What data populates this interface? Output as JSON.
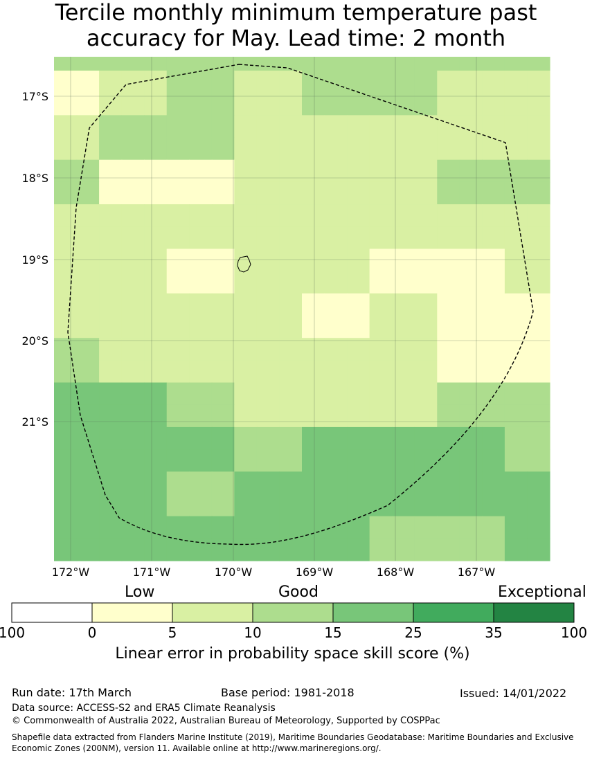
{
  "title": {
    "line1": "Tercile monthly minimum temperature past",
    "line2": "accuracy for May. Lead time: 2 month"
  },
  "map": {
    "lat_ticks": [
      "17°S",
      "18°S",
      "19°S",
      "20°S",
      "21°S"
    ],
    "lon_ticks": [
      "172°W",
      "171°W",
      "170°W",
      "169°W",
      "168°W",
      "167°W"
    ],
    "grid_colors": {
      "1": "#ffffcc",
      "2": "#d9f0a3",
      "3": "#addd8e",
      "4": "#78c679"
    },
    "grid": [
      [
        3,
        3,
        3,
        3,
        3,
        3,
        3,
        3,
        3,
        3,
        3,
        3,
        3,
        3,
        3,
        3,
        3,
        3,
        3,
        3,
        3,
        3
      ],
      [
        1,
        1,
        2,
        2,
        2,
        3,
        3,
        3,
        2,
        2,
        2,
        3,
        3,
        3,
        3,
        3,
        3,
        2,
        2,
        2,
        2,
        2
      ],
      [
        1,
        1,
        2,
        2,
        2,
        3,
        3,
        3,
        2,
        2,
        2,
        3,
        3,
        3,
        3,
        3,
        3,
        2,
        2,
        2,
        2,
        2
      ],
      [
        2,
        2,
        3,
        3,
        3,
        3,
        3,
        3,
        2,
        2,
        2,
        2,
        2,
        2,
        2,
        2,
        2,
        2,
        2,
        2,
        2,
        2
      ],
      [
        2,
        2,
        3,
        3,
        3,
        3,
        3,
        3,
        2,
        2,
        2,
        2,
        2,
        2,
        2,
        2,
        2,
        2,
        2,
        2,
        2,
        2
      ],
      [
        3,
        3,
        1,
        1,
        1,
        1,
        1,
        1,
        2,
        2,
        2,
        2,
        2,
        2,
        2,
        2,
        2,
        3,
        3,
        3,
        3,
        3
      ],
      [
        3,
        3,
        1,
        1,
        1,
        1,
        1,
        1,
        2,
        2,
        2,
        2,
        2,
        2,
        2,
        2,
        2,
        3,
        3,
        3,
        3,
        3
      ],
      [
        2,
        2,
        2,
        2,
        2,
        2,
        2,
        2,
        2,
        2,
        2,
        2,
        2,
        2,
        2,
        2,
        2,
        2,
        2,
        2,
        2,
        2
      ],
      [
        2,
        2,
        2,
        2,
        2,
        2,
        2,
        2,
        2,
        2,
        2,
        2,
        2,
        2,
        2,
        2,
        2,
        2,
        2,
        2,
        2,
        2
      ],
      [
        2,
        2,
        2,
        2,
        2,
        1,
        1,
        1,
        2,
        2,
        2,
        2,
        2,
        2,
        1,
        1,
        1,
        1,
        1,
        1,
        2,
        2
      ],
      [
        2,
        2,
        2,
        2,
        2,
        1,
        1,
        1,
        2,
        2,
        2,
        2,
        2,
        2,
        1,
        1,
        1,
        1,
        1,
        1,
        2,
        2
      ],
      [
        2,
        2,
        2,
        2,
        2,
        2,
        2,
        2,
        2,
        2,
        2,
        1,
        1,
        1,
        2,
        2,
        2,
        1,
        1,
        1,
        1,
        1
      ],
      [
        2,
        2,
        2,
        2,
        2,
        2,
        2,
        2,
        2,
        2,
        2,
        1,
        1,
        1,
        2,
        2,
        2,
        1,
        1,
        1,
        1,
        1
      ],
      [
        3,
        3,
        2,
        2,
        2,
        2,
        2,
        2,
        2,
        2,
        2,
        2,
        2,
        2,
        2,
        2,
        2,
        1,
        1,
        1,
        1,
        1
      ],
      [
        3,
        3,
        2,
        2,
        2,
        2,
        2,
        2,
        2,
        2,
        2,
        2,
        2,
        2,
        2,
        2,
        2,
        1,
        1,
        1,
        1,
        1
      ],
      [
        4,
        4,
        4,
        4,
        4,
        3,
        3,
        3,
        2,
        2,
        2,
        2,
        2,
        2,
        2,
        2,
        2,
        3,
        3,
        3,
        3,
        3
      ],
      [
        4,
        4,
        4,
        4,
        4,
        3,
        3,
        3,
        2,
        2,
        2,
        2,
        2,
        2,
        2,
        2,
        2,
        3,
        3,
        3,
        3,
        3
      ],
      [
        4,
        4,
        4,
        4,
        4,
        4,
        4,
        4,
        3,
        3,
        3,
        4,
        4,
        4,
        4,
        4,
        4,
        4,
        4,
        4,
        3,
        3
      ],
      [
        4,
        4,
        4,
        4,
        4,
        4,
        4,
        4,
        3,
        3,
        3,
        4,
        4,
        4,
        4,
        4,
        4,
        4,
        4,
        4,
        3,
        3
      ],
      [
        4,
        4,
        4,
        4,
        4,
        3,
        3,
        3,
        4,
        4,
        4,
        4,
        4,
        4,
        4,
        4,
        4,
        4,
        4,
        4,
        4,
        4
      ],
      [
        4,
        4,
        4,
        4,
        4,
        3,
        3,
        3,
        4,
        4,
        4,
        4,
        4,
        4,
        4,
        4,
        4,
        4,
        4,
        4,
        4,
        4
      ],
      [
        4,
        4,
        4,
        4,
        4,
        4,
        4,
        4,
        4,
        4,
        4,
        4,
        4,
        4,
        3,
        3,
        3,
        3,
        3,
        3,
        4,
        4
      ],
      [
        4,
        4,
        4,
        4,
        4,
        4,
        4,
        4,
        4,
        4,
        4,
        4,
        4,
        4,
        3,
        3,
        3,
        3,
        3,
        3,
        4,
        4
      ]
    ]
  },
  "legend": {
    "categories": [
      "Low",
      "Good",
      "Exceptional"
    ],
    "colors": [
      "#ffffff",
      "#ffffcc",
      "#d9f0a3",
      "#addd8e",
      "#78c679",
      "#41ab5d",
      "#238443"
    ],
    "ticks": [
      "100",
      "0",
      "5",
      "10",
      "15",
      "25",
      "35",
      "100"
    ],
    "label": "Linear error in probability space skill score (%)"
  },
  "footer": {
    "run_date": "Run date: 17th March",
    "base_period": "Base period: 1981-2018",
    "issued": "Issued: 14/01/2022",
    "data_source": "Data source: ACCESS-S2 and ERA5 Climate Reanalysis",
    "copyright": "© Commonwealth of Australia 2022, Australian Bureau of Meteorology, Supported by COSPPac",
    "shapefile_line1": "Shapefile data extracted from Flanders Marine Institute (2019), Maritime Boundaries Geodatabase: Maritime Boundaries and Exclusive",
    "shapefile_line2": "Economic Zones (200NM), version 11. Available online at http://www.marineregions.org/."
  }
}
